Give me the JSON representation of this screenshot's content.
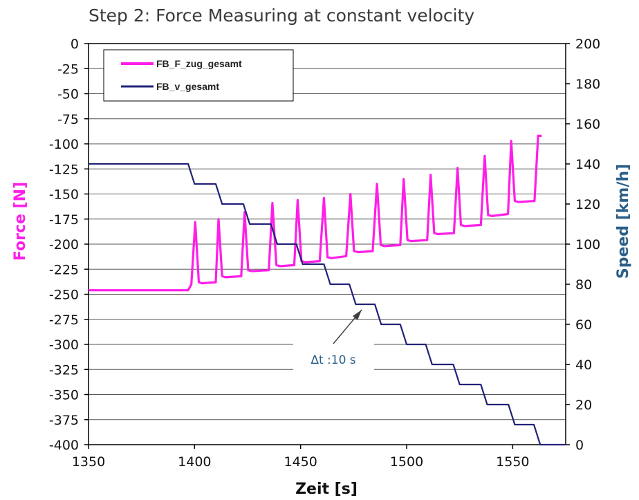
{
  "chart_data": {
    "type": "line",
    "title": "Step 2: Force Measuring at constant velocity",
    "xlabel": "Zeit [s]",
    "ylabel_left": "Force [N]",
    "ylabel_right": "Speed [km/h]",
    "xlim": [
      1350,
      1575
    ],
    "ylim_left": [
      -400,
      0
    ],
    "ylim_right": [
      0,
      200
    ],
    "x_ticks": [
      "1350",
      "1400",
      "1450",
      "1500",
      "1550"
    ],
    "y_left_ticks": [
      "0",
      "-25",
      "-50",
      "-75",
      "-100",
      "-125",
      "-150",
      "-175",
      "-200",
      "-225",
      "-250",
      "-275",
      "-300",
      "-325",
      "-350",
      "-375",
      "-400"
    ],
    "y_right_ticks": [
      "200",
      "180",
      "160",
      "140",
      "120",
      "100",
      "80",
      "60",
      "40",
      "20",
      "0"
    ],
    "grid": true,
    "legend_position": "top-left",
    "colors": {
      "force": "#ff1ee8",
      "speed": "#22227a",
      "force_label": "#ff1ee8",
      "speed_label": "#2a5f8a"
    },
    "annotation": {
      "text": "Δt :10 s",
      "x": 1477,
      "y_right": 70
    },
    "series": [
      {
        "name": "FB_F_zug_gesamt",
        "axis": "left",
        "x": [
          1350,
          1397,
          1398.5,
          1400.3,
          1402,
          1403.5,
          1410,
          1411.3,
          1413,
          1414.6,
          1422,
          1423.6,
          1425.3,
          1427,
          1435,
          1436.7,
          1438.6,
          1440.4,
          1447,
          1448.6,
          1450.4,
          1452.2,
          1459,
          1461,
          1462.7,
          1464.4,
          1471.5,
          1473.5,
          1475.2,
          1477,
          1484,
          1486,
          1487.8,
          1489.5,
          1497,
          1498.6,
          1500.4,
          1502,
          1509.7,
          1511.3,
          1513,
          1514.6,
          1522.3,
          1524,
          1525.6,
          1527.3,
          1535,
          1536.8,
          1538.4,
          1540.2,
          1547.8,
          1549.3,
          1551,
          1552.7,
          1560.3,
          1562,
          1563.7
        ],
        "values": [
          -246,
          -246,
          -240,
          -178,
          -238,
          -239,
          -238,
          -175,
          -232,
          -233,
          -232,
          -168,
          -226,
          -227,
          -226,
          -159,
          -221,
          -222,
          -221,
          -156,
          -217,
          -218,
          -217,
          -154,
          -213,
          -214,
          -212,
          -150,
          -207,
          -208,
          -207,
          -140,
          -201,
          -202,
          -201,
          -135,
          -196,
          -197,
          -196,
          -131,
          -189,
          -190,
          -189,
          -124,
          -181,
          -182,
          -181,
          -112,
          -171,
          -172,
          -170,
          -97,
          -157,
          -158,
          -157,
          -92,
          -92
        ]
      },
      {
        "name": "FB_v_gesamt",
        "axis": "right",
        "x": [
          1350,
          1397,
          1400,
          1410,
          1413,
          1423,
          1426,
          1436,
          1439,
          1448,
          1451,
          1461,
          1464,
          1473,
          1476,
          1485,
          1488,
          1497,
          1500,
          1509,
          1512,
          1522,
          1525,
          1535,
          1538,
          1548,
          1551,
          1560,
          1563,
          1575
        ],
        "values": [
          140,
          140,
          130,
          130,
          120,
          120,
          110,
          110,
          100,
          100,
          90,
          90,
          80,
          80,
          70,
          70,
          60,
          60,
          50,
          50,
          40,
          40,
          30,
          30,
          20,
          20,
          10,
          10,
          0,
          0
        ]
      }
    ]
  }
}
